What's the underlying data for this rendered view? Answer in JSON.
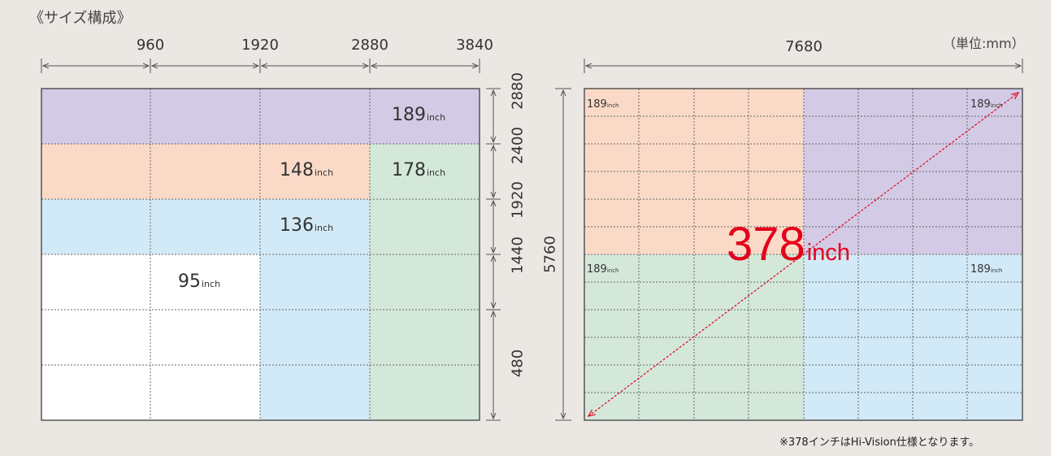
{
  "heading": "《サイズ構成》",
  "unit_note": "（単位:mm）",
  "footnote": "※378インチはHi-Vision仕様となります。",
  "left": {
    "col_ticks": [
      "960",
      "1920",
      "2880",
      "3840"
    ],
    "row_ticks": [
      "2880",
      "2400",
      "1920",
      "1440",
      "480"
    ],
    "labels": {
      "l189": "189",
      "l148": "148",
      "l178": "178",
      "l136": "136",
      "l95": "95",
      "unit": "inch"
    }
  },
  "right": {
    "width": "7680",
    "height": "5760",
    "corner_label": "189",
    "corner_unit": "inch",
    "hero_value": "378",
    "hero_unit": "inch"
  },
  "colors": {
    "panel": "#ebe7e3",
    "purple": "#d3cbe5",
    "orange": "#fadac7",
    "green": "#d4e8da",
    "blue": "#d2eaf7",
    "white": "#ffffff",
    "accent_red": "#e4001b"
  }
}
